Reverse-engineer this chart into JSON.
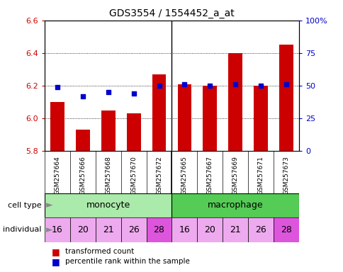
{
  "title": "GDS3554 / 1554452_a_at",
  "samples": [
    "GSM257664",
    "GSM257666",
    "GSM257668",
    "GSM257670",
    "GSM257672",
    "GSM257665",
    "GSM257667",
    "GSM257669",
    "GSM257671",
    "GSM257673"
  ],
  "red_values": [
    6.1,
    5.93,
    6.05,
    6.03,
    6.27,
    6.21,
    6.2,
    6.4,
    6.2,
    6.45
  ],
  "blue_values": [
    49,
    42,
    45,
    44,
    50,
    51,
    50,
    51,
    50,
    51
  ],
  "bar_bottom": 5.8,
  "ylim_left": [
    5.8,
    6.6
  ],
  "ylim_right": [
    0,
    100
  ],
  "yticks_left": [
    5.8,
    6.0,
    6.2,
    6.4,
    6.6
  ],
  "yticks_right": [
    0,
    25,
    50,
    75,
    100
  ],
  "ytick_labels_right": [
    "0",
    "25",
    "50",
    "75",
    "100%"
  ],
  "individuals": [
    "16",
    "20",
    "21",
    "26",
    "28",
    "16",
    "20",
    "21",
    "26",
    "28"
  ],
  "monocyte_color": "#aaeaaa",
  "macrophage_color": "#55cc55",
  "individual_colors_light": "#eeaaee",
  "individual_color_dark": "#dd55dd",
  "dark_individuals": [
    4,
    9
  ],
  "bar_color": "#cc0000",
  "dot_color": "#0000cc",
  "xtick_bg_color": "#cccccc",
  "legend_red": "transformed count",
  "legend_blue": "percentile rank within the sample",
  "tick_label_color_left": "#cc0000",
  "tick_label_color_right": "#0000cc",
  "bar_width": 0.55,
  "separator_col": 4
}
